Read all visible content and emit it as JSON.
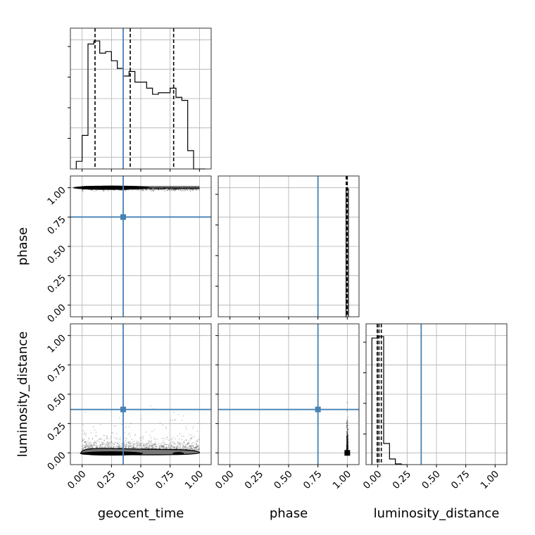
{
  "chart_data": {
    "type": "corner",
    "parameters": [
      "geocent_time",
      "phase",
      "luminosity_distance"
    ],
    "axis_range": [
      -0.1,
      1.1
    ],
    "tick_labels": [
      "0.00",
      "0.25",
      "0.50",
      "0.75",
      "1.00"
    ],
    "tick_values": [
      0.0,
      0.25,
      0.5,
      0.75,
      1.0
    ],
    "truth_color": "#4682b4",
    "truths": {
      "geocent_time": 0.35,
      "phase": 0.75,
      "luminosity_distance": 0.37
    },
    "quantiles": {
      "geocent_time": [
        0.11,
        0.41,
        0.78
      ],
      "phase": [
        0.991,
        0.997,
        1.0
      ],
      "luminosity_distance": [
        -0.005,
        0.01,
        0.03
      ]
    },
    "histograms": {
      "geocent_time": {
        "bin_edges": [
          -0.05,
          0.0,
          0.05,
          0.1,
          0.15,
          0.2,
          0.25,
          0.3,
          0.35,
          0.4,
          0.45,
          0.5,
          0.55,
          0.6,
          0.65,
          0.7,
          0.75,
          0.8,
          0.85,
          0.9,
          0.95,
          1.0,
          1.05
        ],
        "counts": [
          0.05,
          0.22,
          0.82,
          0.84,
          0.76,
          0.77,
          0.71,
          0.66,
          0.61,
          0.64,
          0.57,
          0.57,
          0.53,
          0.49,
          0.5,
          0.5,
          0.53,
          0.47,
          0.45,
          0.12,
          0.0,
          0.0
        ]
      },
      "phase": {
        "bin_edges": [
          0.98,
          0.99,
          1.0,
          1.01
        ],
        "counts": [
          0.0,
          1.0,
          1.0
        ]
      },
      "luminosity_distance": {
        "bin_edges": [
          -0.05,
          0.0,
          0.05,
          0.1,
          0.15,
          0.2,
          0.25
        ],
        "counts": [
          0.9,
          0.91,
          0.15,
          0.04,
          0.005,
          0.0
        ]
      }
    },
    "density_panels": [
      {
        "x": "geocent_time",
        "y": "phase",
        "points_center": 1.0,
        "spread": 0.01
      },
      {
        "x": "geocent_time",
        "y": "luminosity_distance",
        "points_center": 0.0,
        "spread": 0.05
      },
      {
        "x": "phase",
        "y": "luminosity_distance",
        "points_center": 1.0,
        "spread": 0.01
      }
    ],
    "grid": true
  }
}
